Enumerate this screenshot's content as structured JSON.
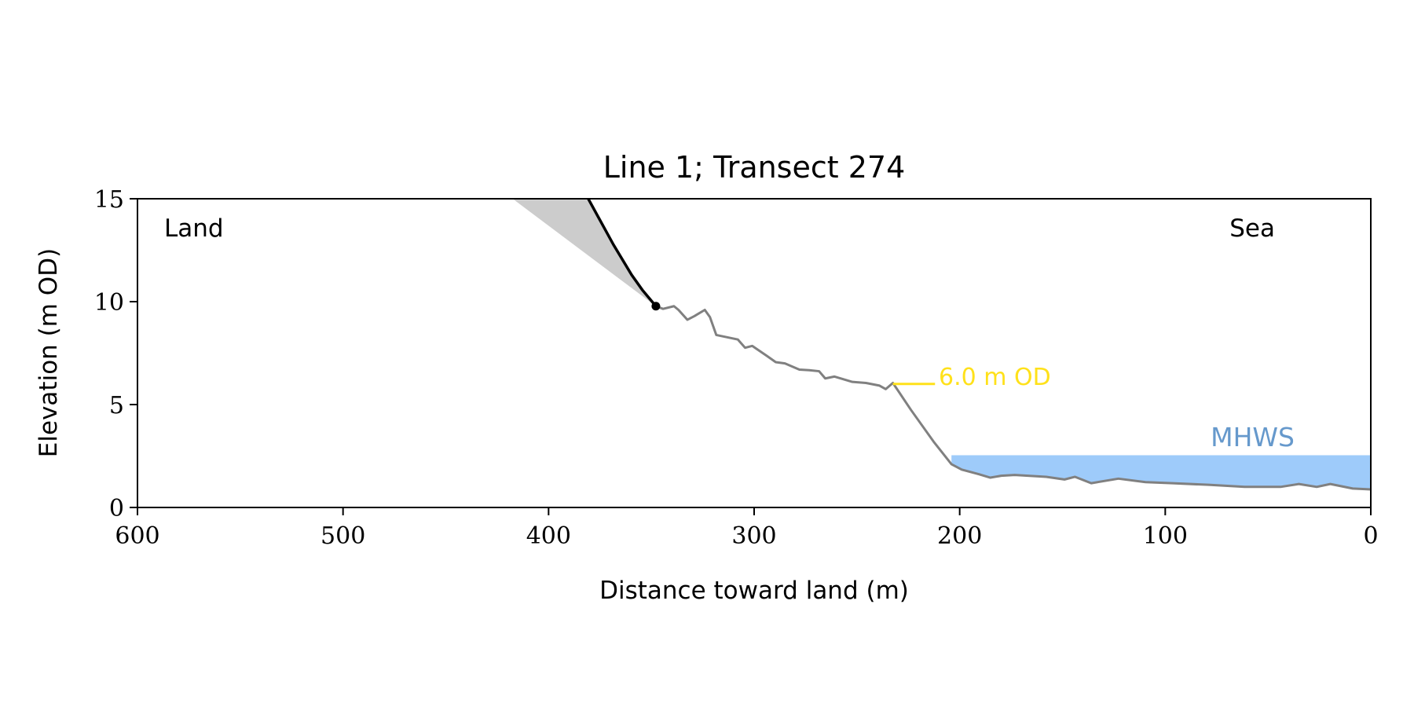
{
  "chart_data": {
    "type": "line",
    "title": "Line 1; Transect 274",
    "xlabel": "Distance toward land (m)",
    "ylabel": "Elevation (m OD)",
    "xlim": [
      600,
      0
    ],
    "ylim": [
      0,
      15
    ],
    "xticks": [
      "600",
      "500",
      "400",
      "300",
      "200",
      "100",
      "0"
    ],
    "xtick_values": [
      600,
      500,
      400,
      300,
      200,
      100,
      0
    ],
    "yticks": [
      "0",
      "5",
      "10",
      "15"
    ],
    "ytick_values": [
      0,
      5,
      10,
      15
    ],
    "grid": false,
    "annotations": {
      "land": "Land",
      "sea": "Sea",
      "mhws": "MHWS",
      "contour_label": "6.0 m OD"
    },
    "colors": {
      "profile": "#808080",
      "cliff": "#000000",
      "cliff_fill": "#cccccc",
      "mhws_fill": "#9ecbfa",
      "mhws_text": "#6699cc",
      "contour": "#ffe11a"
    },
    "mhws_level": 2.54,
    "mhws_x_range": [
      204,
      0
    ],
    "contour_level": 6.0,
    "contour_x_range": [
      232.5,
      212
    ],
    "cliff": {
      "x": [
        380.7,
        368.4,
        359.6,
        354.4,
        347.8
      ],
      "y": [
        15,
        12.76,
        11.3,
        10.57,
        9.78
      ]
    },
    "cliff_shade_top_x": 417.5,
    "cliff_toe": {
      "x": 347.8,
      "y": 9.78
    },
    "profile": {
      "x": [
        347.8,
        344.3,
        339,
        336.8,
        332.5,
        329,
        324,
        321.5,
        318.4,
        307.9,
        304.4,
        300.9,
        293.9,
        289.5,
        285,
        278,
        273.2,
        268.4,
        265.4,
        261,
        252.2,
        245.6,
        239,
        236,
        232.5,
        223.7,
        212.7,
        204,
        199,
        190.8,
        185.1,
        179.8,
        173.2,
        157.9,
        149,
        143.9,
        136,
        122.8,
        109.6,
        96.5,
        78.9,
        61.4,
        43.9,
        35,
        26.3,
        19.7,
        8.8,
        0
      ],
      "y": [
        9.78,
        9.65,
        9.78,
        9.6,
        9.12,
        9.3,
        9.6,
        9.25,
        8.38,
        8.16,
        7.76,
        7.85,
        7.37,
        7.06,
        7.0,
        6.7,
        6.67,
        6.62,
        6.27,
        6.36,
        6.1,
        6.05,
        5.92,
        5.75,
        6.05,
        4.74,
        3.2,
        2.1,
        1.84,
        1.62,
        1.45,
        1.54,
        1.58,
        1.49,
        1.36,
        1.49,
        1.18,
        1.4,
        1.23,
        1.18,
        1.1,
        1.0,
        1.0,
        1.14,
        1.0,
        1.14,
        0.92,
        0.88
      ]
    }
  }
}
